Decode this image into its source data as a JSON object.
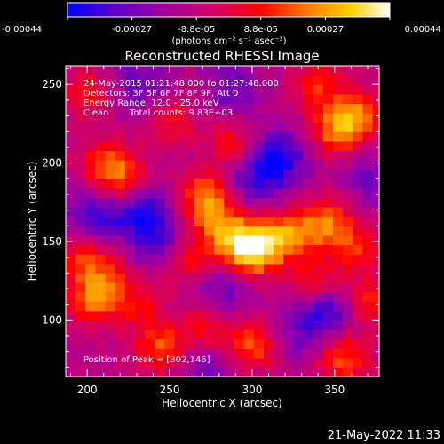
{
  "colorbar": {
    "tick_labels": [
      "-0.00044",
      "-0.00027",
      "-8.8e-05",
      "8.8e-05",
      "0.00027",
      "0.00044"
    ],
    "units_label": "(photons cm⁻² s⁻¹ asec⁻²)",
    "range": [
      -0.00044,
      0.00044
    ],
    "colormap": [
      "#0000ff",
      "#5a00c8",
      "#a000a0",
      "#d20064",
      "#ff0000",
      "#ff8000",
      "#ffd000",
      "#ffffff"
    ]
  },
  "chart_data": {
    "type": "heatmap",
    "title": "Reconstructed RHESSI Image",
    "xlabel": "Heliocentric X (arcsec)",
    "ylabel": "Heliocentric Y (arcsec)",
    "xlim": [
      187,
      377
    ],
    "ylim": [
      64,
      262
    ],
    "xticks": [
      200,
      250,
      300,
      350
    ],
    "yticks": [
      100,
      150,
      200,
      250
    ],
    "grid": false,
    "annotations": {
      "time_range": "24-May-2015 01:21:48.000 to 01:27:48.000",
      "detectors": "Detectors: 3F 5F 6F 7F 8F 9F, Att 0",
      "energy_range": "Energy Range: 12.0 - 25.0 keV",
      "clean_label": "Clean",
      "total_counts": "Total counts: 9.83E+03",
      "peak_position": "Position of Peak = [302,146]"
    },
    "peak": [
      302,
      146
    ],
    "sources": [
      {
        "x": 300,
        "y": 146,
        "amp": 1.0
      },
      {
        "x": 282,
        "y": 158,
        "amp": 0.5
      },
      {
        "x": 272,
        "y": 178,
        "amp": 0.55
      },
      {
        "x": 322,
        "y": 154,
        "amp": 0.55
      },
      {
        "x": 345,
        "y": 162,
        "amp": 0.5
      },
      {
        "x": 262,
        "y": 138,
        "amp": 0.35
      },
      {
        "x": 362,
        "y": 146,
        "amp": 0.35
      },
      {
        "x": 353,
        "y": 222,
        "amp": 0.55
      },
      {
        "x": 365,
        "y": 232,
        "amp": 0.4
      },
      {
        "x": 340,
        "y": 250,
        "amp": 0.35
      },
      {
        "x": 212,
        "y": 200,
        "amp": 0.45
      },
      {
        "x": 222,
        "y": 185,
        "amp": 0.4
      },
      {
        "x": 203,
        "y": 112,
        "amp": 0.45
      },
      {
        "x": 197,
        "y": 140,
        "amp": 0.35
      },
      {
        "x": 212,
        "y": 126,
        "amp": 0.3
      },
      {
        "x": 288,
        "y": 212,
        "amp": 0.3
      },
      {
        "x": 250,
        "y": 228,
        "amp": 0.3
      },
      {
        "x": 200,
        "y": 245,
        "amp": 0.3
      },
      {
        "x": 300,
        "y": 84,
        "amp": 0.45
      },
      {
        "x": 245,
        "y": 82,
        "amp": 0.45
      },
      {
        "x": 272,
        "y": 96,
        "amp": 0.35
      },
      {
        "x": 355,
        "y": 76,
        "amp": 0.45
      },
      {
        "x": 232,
        "y": 110,
        "amp": 0.3
      },
      {
        "x": 372,
        "y": 112,
        "amp": 0.35
      },
      {
        "x": 338,
        "y": 125,
        "amp": 0.3
      }
    ],
    "sinks": [
      {
        "x": 232,
        "y": 170,
        "amp": 0.75
      },
      {
        "x": 205,
        "y": 168,
        "amp": 0.55
      },
      {
        "x": 315,
        "y": 203,
        "amp": 0.8
      },
      {
        "x": 300,
        "y": 188,
        "amp": 0.4
      },
      {
        "x": 243,
        "y": 148,
        "amp": 0.45
      },
      {
        "x": 345,
        "y": 106,
        "amp": 0.55
      },
      {
        "x": 282,
        "y": 118,
        "amp": 0.4
      },
      {
        "x": 232,
        "y": 250,
        "amp": 0.45
      },
      {
        "x": 288,
        "y": 248,
        "amp": 0.4
      },
      {
        "x": 270,
        "y": 72,
        "amp": 0.35
      },
      {
        "x": 330,
        "y": 90,
        "amp": 0.35
      },
      {
        "x": 372,
        "y": 190,
        "amp": 0.35
      }
    ]
  },
  "footer": {
    "timestamp": "21-May-2022 11:33"
  }
}
